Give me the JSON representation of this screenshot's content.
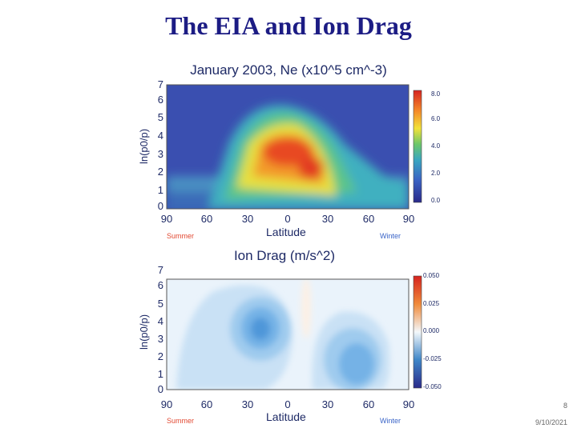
{
  "slide": {
    "title": "The EIA and Ion Drag",
    "number": "8",
    "date": "9/10/2021"
  },
  "top_panel": {
    "title": "January 2003, Ne (x10^5 cm^-3)",
    "ylabel": "ln(p0/p)",
    "xlabel": "Latitude",
    "summer": "Summer",
    "winter": "Winter",
    "yticks": [
      "0",
      "1",
      "2",
      "3",
      "4",
      "5",
      "6",
      "7"
    ],
    "xticks": [
      "90",
      "60",
      "30",
      "0",
      "30",
      "60",
      "90"
    ],
    "cbar_ticks": [
      "8.0",
      "6.0",
      "4.0",
      "2.0",
      "0.0"
    ]
  },
  "bottom_panel": {
    "title": "Ion Drag (m/s^2)",
    "ylabel": "ln(p0/p)",
    "xlabel": "Latitude",
    "summer": "Summer",
    "winter": "Winter",
    "yticks": [
      "0",
      "1",
      "2",
      "3",
      "4",
      "5",
      "6",
      "7"
    ],
    "xticks": [
      "90",
      "60",
      "30",
      "0",
      "30",
      "60",
      "90"
    ],
    "cbar_ticks": [
      "0.050",
      "0.025",
      "0.000",
      "-0.025",
      "-0.050"
    ]
  },
  "colors": {
    "title": "#1c1c84",
    "axis_text": "#1e2a66",
    "summer": "#e24a33",
    "winter": "#3a64c8"
  }
}
